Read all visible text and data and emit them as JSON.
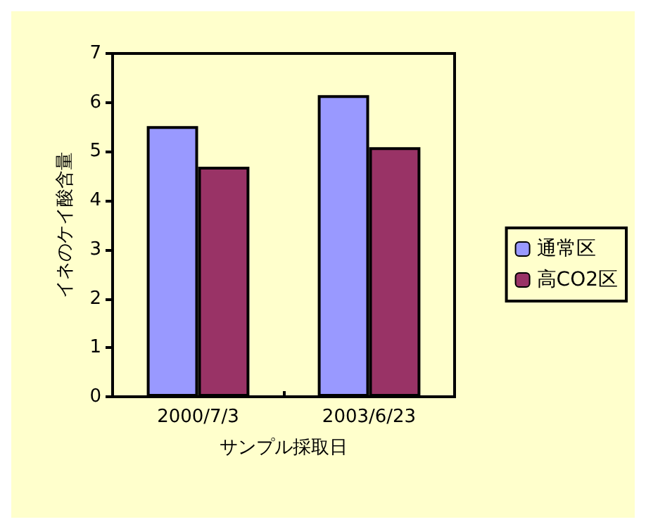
{
  "chart_data": {
    "type": "bar",
    "xlabel": "サンプル採取日",
    "ylabel": "イネのケイ酸含量",
    "categories": [
      "2000/7/3",
      "2003/6/23"
    ],
    "series": [
      {
        "name": "通常区",
        "color": "#9999ff",
        "values": [
          5.52,
          6.15
        ]
      },
      {
        "name": "高CO2区",
        "color": "#993366",
        "values": [
          4.69,
          5.09
        ]
      }
    ],
    "ylim": [
      0,
      7
    ],
    "yticks": [
      0,
      1,
      2,
      3,
      4,
      5,
      6,
      7
    ],
    "grid": false,
    "legend": "right"
  }
}
